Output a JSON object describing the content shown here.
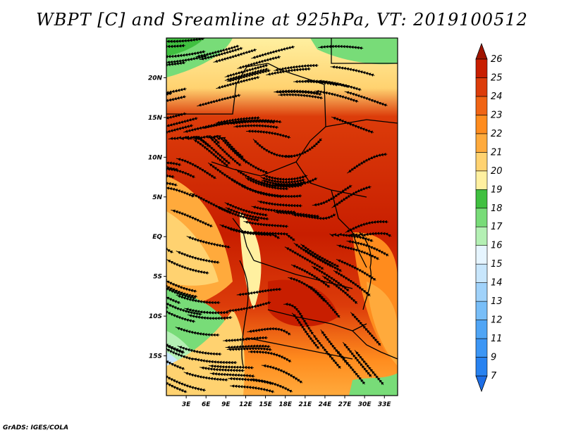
{
  "title": "WBPT [C] and Sreamline at 925hPa, VT: 2019100512",
  "credit": "GrADS: IGES/COLA",
  "map": {
    "lon_range": [
      0,
      35
    ],
    "lat_range": [
      -20,
      25
    ],
    "lat_ticks": [
      {
        "value": 20,
        "label": "20N"
      },
      {
        "value": 15,
        "label": "15N"
      },
      {
        "value": 10,
        "label": "10N"
      },
      {
        "value": 5,
        "label": "5N"
      },
      {
        "value": 0,
        "label": "EQ"
      },
      {
        "value": -5,
        "label": "5S"
      },
      {
        "value": -10,
        "label": "10S"
      },
      {
        "value": -15,
        "label": "15S"
      }
    ],
    "lon_ticks": [
      {
        "value": 3,
        "label": "3E"
      },
      {
        "value": 6,
        "label": "6E"
      },
      {
        "value": 9,
        "label": "9E"
      },
      {
        "value": 12,
        "label": "12E"
      },
      {
        "value": 15,
        "label": "15E"
      },
      {
        "value": 18,
        "label": "18E"
      },
      {
        "value": 21,
        "label": "21E"
      },
      {
        "value": 24,
        "label": "24E"
      },
      {
        "value": 27,
        "label": "27E"
      },
      {
        "value": 30,
        "label": "30E"
      },
      {
        "value": 33,
        "label": "33E"
      }
    ]
  },
  "colorbar": {
    "labels": [
      "7",
      "9",
      "11",
      "12",
      "13",
      "14",
      "15",
      "16",
      "17",
      "18",
      "19",
      "20",
      "21",
      "22",
      "23",
      "24",
      "25",
      "26"
    ],
    "colors": [
      "#1e6ee6",
      "#2882f0",
      "#3c96f5",
      "#50a5f5",
      "#78bef8",
      "#a0d2fa",
      "#c8e6fc",
      "#e6f5ff",
      "#b4f0b4",
      "#78dc78",
      "#40c040",
      "#fff0a0",
      "#ffd270",
      "#ffaa3c",
      "#ff8c1e",
      "#f06414",
      "#dc3c0a",
      "#c81e00",
      "#a01400"
    ]
  }
}
